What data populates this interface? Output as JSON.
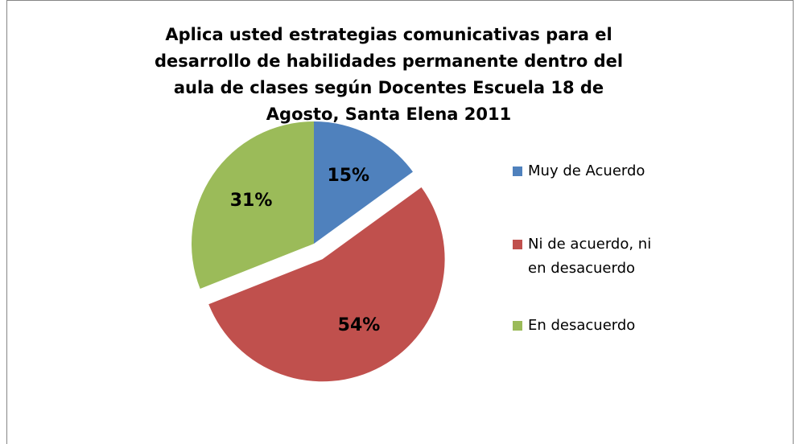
{
  "chart_data": {
    "type": "pie",
    "title": "Aplica usted estrategias comunicativas para el desarrollo de habilidades permanente dentro del aula de clases según Docentes Escuela 18 de Agosto, Santa Elena 2011",
    "categories": [
      "Muy de Acuerdo",
      "Ni de acuerdo, ni en desacuerdo",
      "En desacuerdo"
    ],
    "values": [
      15,
      54,
      31
    ],
    "value_labels": [
      "15%",
      "54%",
      "31%"
    ],
    "colors": [
      "#4f81bd",
      "#c0504d",
      "#9bbb59"
    ],
    "exploded": [
      false,
      true,
      false
    ],
    "legend": "right"
  }
}
